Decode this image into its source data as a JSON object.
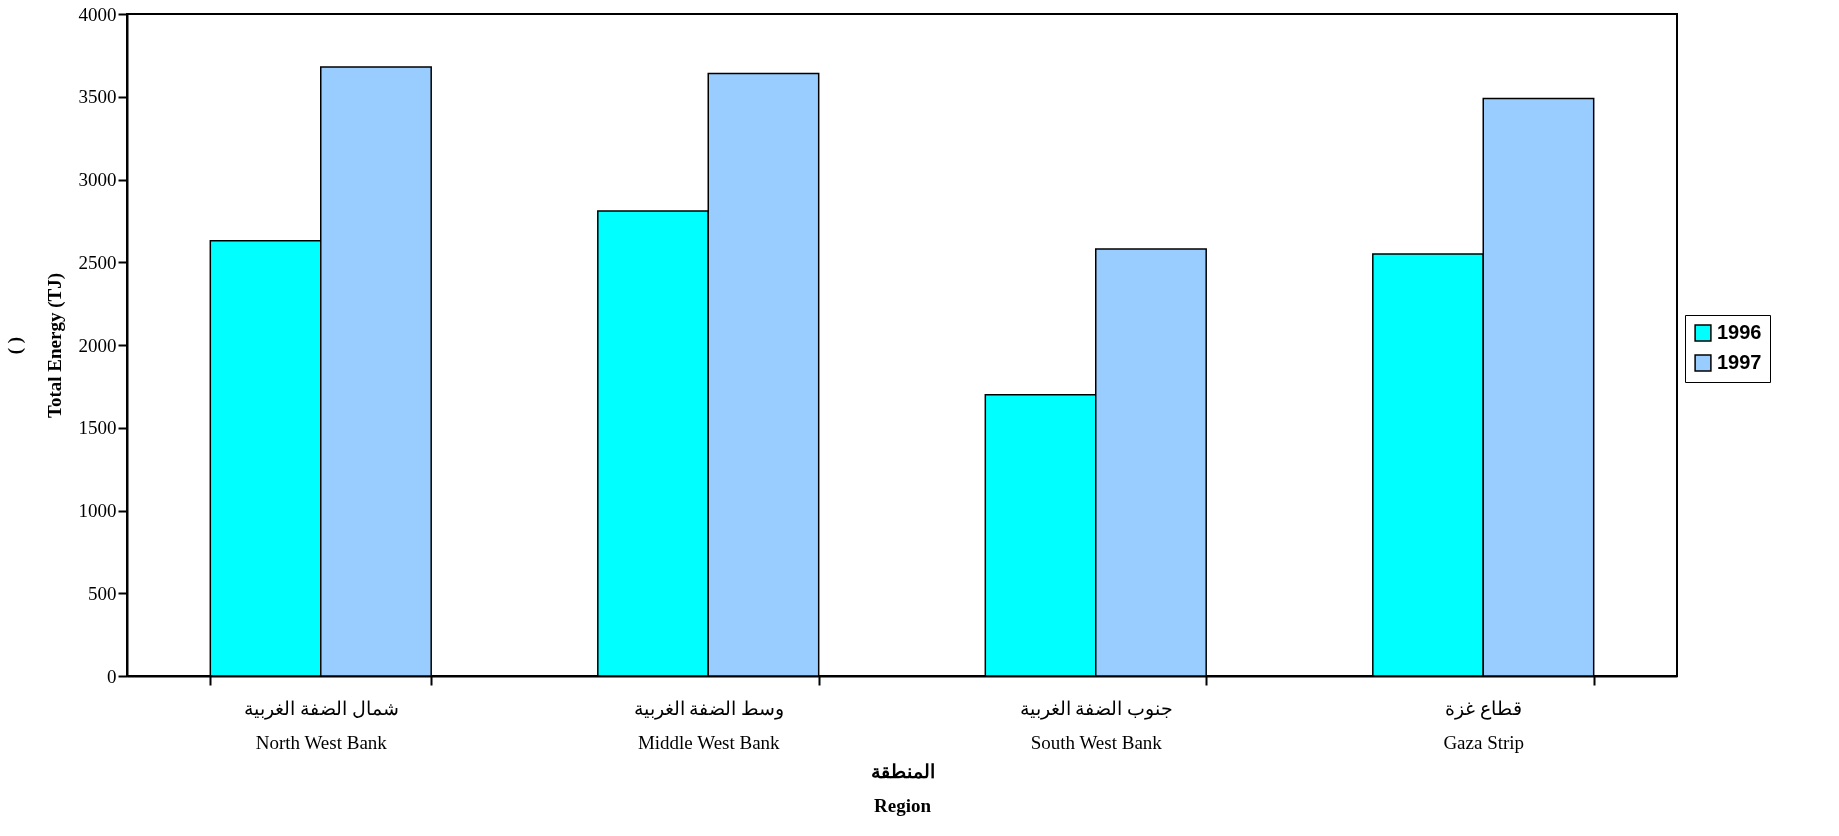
{
  "chart_data": {
    "type": "bar",
    "xlabel": "المنطقة\nRegion",
    "ylabel": "(      )\nTotal Energy (TJ)",
    "categories": [
      "شمال الضفة الغربية\nNorth West Bank",
      "وسط الضفة الغربية\nMiddle West Bank",
      "جنوب الضفة الغربية\nSouth West Bank",
      "قطاع غزة\nGaza Strip"
    ],
    "series": [
      {
        "name": "1996",
        "color": "#00ffff",
        "values": [
          2630,
          2810,
          1700,
          2550
        ]
      },
      {
        "name": "1997",
        "color": "#99ccff",
        "values": [
          3680,
          3640,
          2580,
          3490
        ]
      }
    ],
    "ylim": [
      0,
      4000
    ],
    "yticks": [
      0,
      500,
      1000,
      1500,
      2000,
      2500,
      3000,
      3500,
      4000
    ],
    "grid": false,
    "legend": "right"
  }
}
